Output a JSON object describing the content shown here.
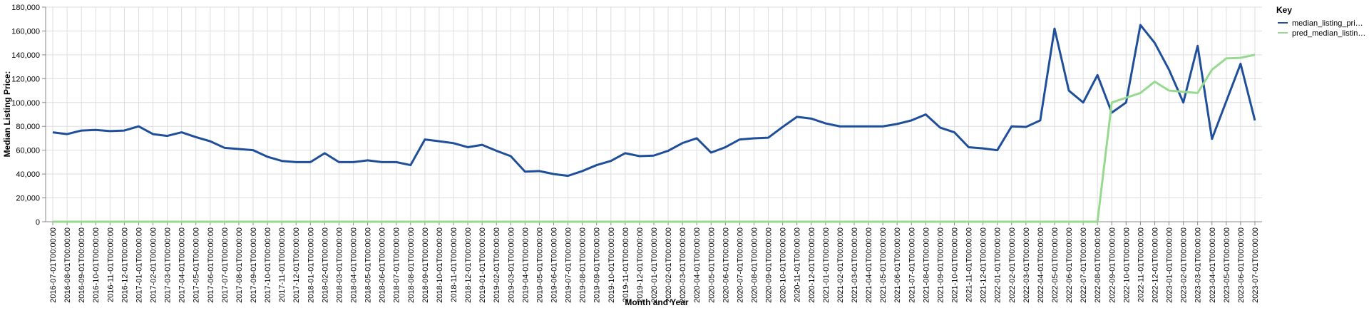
{
  "chart_data": {
    "type": "line",
    "y_label": "Median Listing Price:",
    "x_label": "Month and Year",
    "legend_title": "Key",
    "categories": [
      "2016-07-01T00:00:00",
      "2016-08-01T00:00:00",
      "2016-09-01T00:00:00",
      "2016-10-01T00:00:00",
      "2016-11-01T00:00:00",
      "2016-12-01T00:00:00",
      "2017-01-01T00:00:00",
      "2017-02-01T00:00:00",
      "2017-03-01T00:00:00",
      "2017-04-01T00:00:00",
      "2017-05-01T00:00:00",
      "2017-06-01T00:00:00",
      "2017-07-01T00:00:00",
      "2017-08-01T00:00:00",
      "2017-09-01T00:00:00",
      "2017-10-01T00:00:00",
      "2017-11-01T00:00:00",
      "2017-12-01T00:00:00",
      "2018-01-01T00:00:00",
      "2018-02-01T00:00:00",
      "2018-03-01T00:00:00",
      "2018-04-01T00:00:00",
      "2018-05-01T00:00:00",
      "2018-06-01T00:00:00",
      "2018-07-01T00:00:00",
      "2018-08-01T00:00:00",
      "2018-09-01T00:00:00",
      "2018-10-01T00:00:00",
      "2018-11-01T00:00:00",
      "2018-12-01T00:00:00",
      "2019-01-01T00:00:00",
      "2019-02-01T00:00:00",
      "2019-03-01T00:00:00",
      "2019-04-01T00:00:00",
      "2019-05-01T00:00:00",
      "2019-06-01T00:00:00",
      "2019-07-01T00:00:00",
      "2019-08-01T00:00:00",
      "2019-09-01T00:00:00",
      "2019-10-01T00:00:00",
      "2019-11-01T00:00:00",
      "2019-12-01T00:00:00",
      "2020-01-01T00:00:00",
      "2020-02-01T00:00:00",
      "2020-03-01T00:00:00",
      "2020-04-01T00:00:00",
      "2020-05-01T00:00:00",
      "2020-06-01T00:00:00",
      "2020-07-01T00:00:00",
      "2020-08-01T00:00:00",
      "2020-09-01T00:00:00",
      "2020-10-01T00:00:00",
      "2020-11-01T00:00:00",
      "2020-12-01T00:00:00",
      "2021-01-01T00:00:00",
      "2021-02-01T00:00:00",
      "2021-03-01T00:00:00",
      "2021-04-01T00:00:00",
      "2021-05-01T00:00:00",
      "2021-06-01T00:00:00",
      "2021-07-01T00:00:00",
      "2021-08-01T00:00:00",
      "2021-09-01T00:00:00",
      "2021-10-01T00:00:00",
      "2021-11-01T00:00:00",
      "2021-12-01T00:00:00",
      "2022-01-01T00:00:00",
      "2022-02-01T00:00:00",
      "2022-03-01T00:00:00",
      "2022-04-01T00:00:00",
      "2022-05-01T00:00:00",
      "2022-06-01T00:00:00",
      "2022-07-01T00:00:00",
      "2022-08-01T00:00:00",
      "2022-09-01T00:00:00",
      "2022-10-01T00:00:00",
      "2022-11-01T00:00:00",
      "2022-12-01T00:00:00",
      "2023-01-01T00:00:00",
      "2023-02-01T00:00:00",
      "2023-03-01T00:00:00",
      "2023-04-01T00:00:00",
      "2023-05-01T00:00:00",
      "2023-06-01T00:00:00",
      "2023-07-01T00:00:00"
    ],
    "series": [
      {
        "name": "median_listing_pri…",
        "color": "#1f4e9a",
        "values": [
          75000,
          73500,
          76500,
          77000,
          76000,
          76500,
          80000,
          73500,
          72000,
          75000,
          71000,
          67500,
          62000,
          61000,
          60000,
          54500,
          51000,
          50000,
          50000,
          57500,
          50000,
          50000,
          51500,
          50000,
          50000,
          47500,
          69000,
          67500,
          65900,
          62500,
          64500,
          59500,
          55000,
          42000,
          42500,
          40000,
          38500,
          42500,
          47500,
          51000,
          57500,
          55000,
          55500,
          59500,
          66000,
          70000,
          58000,
          62500,
          69000,
          70000,
          70500,
          79500,
          88000,
          86500,
          82500,
          80000,
          80000,
          80000,
          80000,
          82000,
          85000,
          90000,
          79000,
          75000,
          62500,
          61500,
          60000,
          80000,
          79500,
          85000,
          162000,
          110000,
          100000,
          123000,
          91500,
          100000,
          165000,
          150000,
          127500,
          100000,
          147500,
          69500,
          101000,
          132500,
          85000
        ]
      },
      {
        "name": "pred_median_listin…",
        "color": "#98d990",
        "values": [
          0,
          0,
          0,
          0,
          0,
          0,
          0,
          0,
          0,
          0,
          0,
          0,
          0,
          0,
          0,
          0,
          0,
          0,
          0,
          0,
          0,
          0,
          0,
          0,
          0,
          0,
          0,
          0,
          0,
          0,
          0,
          0,
          0,
          0,
          0,
          0,
          0,
          0,
          0,
          0,
          0,
          0,
          0,
          0,
          0,
          0,
          0,
          0,
          0,
          0,
          0,
          0,
          0,
          0,
          0,
          0,
          0,
          0,
          0,
          0,
          0,
          0,
          0,
          0,
          0,
          0,
          0,
          0,
          0,
          0,
          0,
          0,
          0,
          0,
          100000,
          104000,
          108000,
          117500,
          110000,
          109000,
          108000,
          127500,
          137000,
          137500,
          140000
        ]
      }
    ],
    "ylim": [
      0,
      180000
    ],
    "yticks": [
      0,
      {
        "value": 20000,
        "label": "20,000"
      },
      {
        "value": 40000,
        "label": "40,000"
      },
      {
        "value": 60000,
        "label": "60,000"
      },
      {
        "value": 80000,
        "label": "80,000"
      },
      {
        "value": 100000,
        "label": "100,000"
      },
      {
        "value": 120000,
        "label": "120,000"
      },
      {
        "value": 140000,
        "label": "140,000"
      },
      {
        "value": 160000,
        "label": "160,000"
      },
      {
        "value": 180000,
        "label": "180,000"
      }
    ],
    "grid": true
  }
}
